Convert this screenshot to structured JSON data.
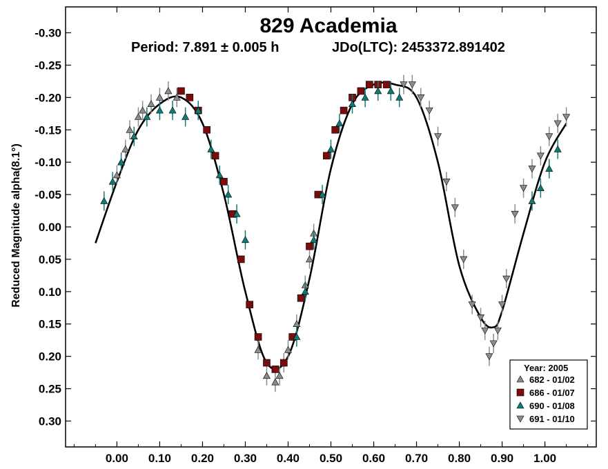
{
  "chart_data": {
    "type": "scatter",
    "title": "829 Academia",
    "subtitle_period": "Period: 7.891 ± 0.005 h",
    "subtitle_epoch": "JDo(LTC): 2453372.891402",
    "xlabel": "",
    "ylabel": "Reduced Magnitude alpha(8.1°)",
    "xlim": [
      -0.12,
      1.12
    ],
    "ylim": [
      0.34,
      -0.34
    ],
    "y_reversed": true,
    "x_ticks": [
      0.0,
      0.1,
      0.2,
      0.3,
      0.4,
      0.5,
      0.6,
      0.7,
      0.8,
      0.9,
      1.0
    ],
    "x_tick_labels": [
      "0.00",
      "0.10",
      "0.20",
      "0.30",
      "0.40",
      "0.50",
      "0.60",
      "0.70",
      "0.80",
      "0.90",
      "1.00"
    ],
    "y_ticks": [
      -0.3,
      -0.25,
      -0.2,
      -0.15,
      -0.1,
      -0.05,
      0.0,
      0.05,
      0.1,
      0.15,
      0.2,
      0.25,
      0.3
    ],
    "y_tick_labels": [
      "-0.30",
      "-0.25",
      "-0.20",
      "-0.15",
      "-0.10",
      "-0.05",
      "0.00",
      "0.05",
      "0.10",
      "0.15",
      "0.20",
      "0.25",
      "0.30"
    ],
    "grid": false,
    "legend_title": "Year: 2005",
    "legend_position": "bottom-right",
    "fit_curve": {
      "name": "",
      "x": [
        -0.05,
        0.0,
        0.05,
        0.1,
        0.15,
        0.2,
        0.25,
        0.3,
        0.35,
        0.4,
        0.45,
        0.5,
        0.55,
        0.6,
        0.65,
        0.7,
        0.75,
        0.8,
        0.85,
        0.88,
        0.9,
        0.95,
        1.0,
        1.05
      ],
      "y": [
        0.025,
        -0.07,
        -0.15,
        -0.19,
        -0.2,
        -0.16,
        -0.05,
        0.1,
        0.21,
        0.2,
        0.08,
        -0.09,
        -0.19,
        -0.22,
        -0.22,
        -0.2,
        -0.1,
        0.06,
        0.14,
        0.155,
        0.13,
        0.01,
        -0.1,
        -0.16
      ]
    },
    "series": [
      {
        "name": "682 - 01/02",
        "marker": "triangle-up",
        "color": "#8c8c8c",
        "x": [
          0.0,
          0.02,
          0.03,
          0.05,
          0.06,
          0.08,
          0.1,
          0.12,
          0.14,
          0.33,
          0.35,
          0.37,
          0.38,
          0.39,
          0.4,
          0.42,
          0.44,
          0.45,
          0.46
        ],
        "y": [
          -0.08,
          -0.12,
          -0.15,
          -0.17,
          -0.18,
          -0.19,
          -0.2,
          -0.21,
          -0.2,
          0.19,
          0.23,
          0.24,
          0.23,
          0.21,
          0.19,
          0.15,
          0.09,
          0.05,
          0.01
        ]
      },
      {
        "name": "686 - 01/07",
        "marker": "square",
        "color": "#7a0c0c",
        "x": [
          0.15,
          0.17,
          0.19,
          0.21,
          0.23,
          0.25,
          0.27,
          0.29,
          0.31,
          0.33,
          0.35,
          0.37,
          0.39,
          0.41,
          0.43,
          0.45,
          0.47,
          0.49,
          0.51,
          0.53,
          0.55,
          0.57,
          0.59,
          0.61,
          0.63
        ],
        "y": [
          -0.21,
          -0.2,
          -0.18,
          -0.15,
          -0.11,
          -0.07,
          -0.02,
          0.05,
          0.12,
          0.17,
          0.21,
          0.22,
          0.21,
          0.17,
          0.11,
          0.03,
          -0.05,
          -0.11,
          -0.15,
          -0.18,
          -0.2,
          -0.21,
          -0.22,
          -0.22,
          -0.22
        ]
      },
      {
        "name": "690 - 01/08",
        "marker": "triangle-up",
        "color": "#0e7a7a",
        "x": [
          -0.03,
          -0.01,
          0.01,
          0.04,
          0.07,
          0.1,
          0.13,
          0.16,
          0.19,
          0.22,
          0.24,
          0.26,
          0.28,
          0.3,
          0.42,
          0.44,
          0.46,
          0.48,
          0.5,
          0.52,
          0.55,
          0.58,
          0.61,
          0.64,
          0.66,
          0.97,
          0.99,
          1.01,
          1.03
        ],
        "y": [
          -0.04,
          -0.07,
          -0.1,
          -0.14,
          -0.17,
          -0.18,
          -0.18,
          -0.17,
          -0.18,
          -0.12,
          -0.08,
          -0.05,
          -0.02,
          0.02,
          0.17,
          0.1,
          0.02,
          -0.05,
          -0.12,
          -0.16,
          -0.19,
          -0.2,
          -0.21,
          -0.21,
          -0.2,
          -0.04,
          -0.06,
          -0.09,
          -0.12
        ]
      },
      {
        "name": "691 - 01/10",
        "marker": "triangle-down",
        "color": "#8c8c8c",
        "x": [
          0.67,
          0.69,
          0.71,
          0.73,
          0.75,
          0.77,
          0.79,
          0.81,
          0.83,
          0.85,
          0.86,
          0.87,
          0.88,
          0.89,
          0.9,
          0.91,
          0.93,
          0.95,
          0.97,
          0.99,
          1.01,
          1.03,
          1.05
        ],
        "y": [
          -0.22,
          -0.22,
          -0.2,
          -0.18,
          -0.14,
          -0.07,
          -0.03,
          0.05,
          0.12,
          0.14,
          0.16,
          0.2,
          0.18,
          0.16,
          0.12,
          0.08,
          -0.02,
          -0.06,
          -0.09,
          -0.11,
          -0.14,
          -0.16,
          -0.17
        ]
      }
    ]
  }
}
